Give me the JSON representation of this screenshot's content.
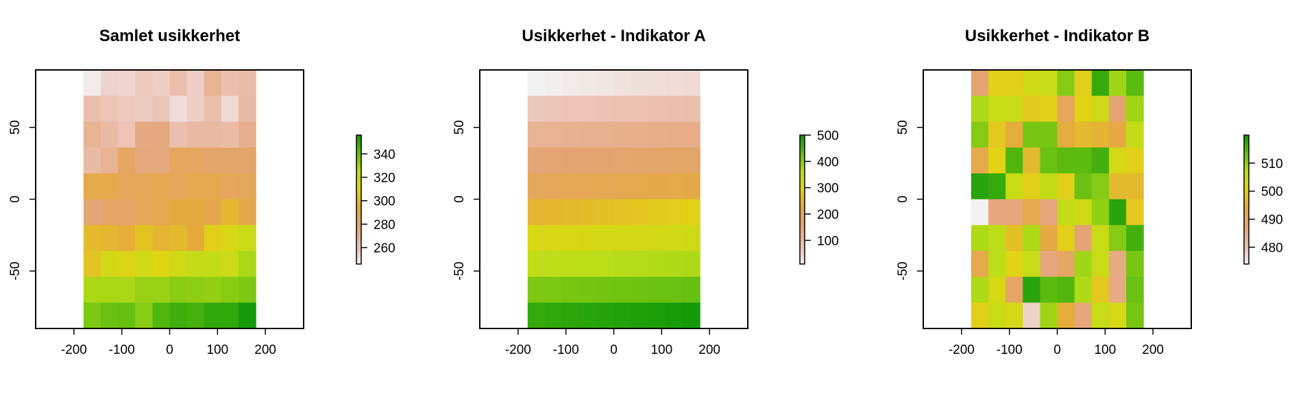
{
  "chart_data": [
    {
      "type": "heatmap",
      "title": "Samlet usikkerhet",
      "xlim": [
        -280,
        280
      ],
      "ylim": [
        -90,
        90
      ],
      "x_ticks": [
        -200,
        -100,
        0,
        100,
        200
      ],
      "y_ticks": [
        -50,
        0,
        50
      ],
      "x_tick_labels": [
        "-200",
        "-100",
        "0",
        "100",
        "200"
      ],
      "y_tick_labels": [
        "-50",
        "0",
        "50"
      ],
      "grid": false,
      "x_range": [
        -180,
        180
      ],
      "y_range": [
        -90,
        90
      ],
      "ncols": 10,
      "nrows": 10,
      "colorbar": {
        "min": 246,
        "max": 356,
        "ticks": [
          260,
          280,
          300,
          320,
          340
        ],
        "tick_labels": [
          "260",
          "280",
          "300",
          "320",
          "340"
        ]
      },
      "z": [
        [
          248,
          255,
          254,
          258,
          256,
          263,
          256,
          270,
          262,
          264
        ],
        [
          262,
          260,
          258,
          257,
          259,
          252,
          256,
          263,
          253,
          265
        ],
        [
          270,
          265,
          260,
          275,
          276,
          262,
          266,
          266,
          264,
          272
        ],
        [
          265,
          270,
          285,
          276,
          276,
          285,
          285,
          282,
          282,
          282
        ],
        [
          292,
          292,
          286,
          288,
          289,
          287,
          290,
          290,
          286,
          287
        ],
        [
          278,
          283,
          283,
          288,
          289,
          295,
          295,
          291,
          300,
          291
        ],
        [
          301,
          300,
          297,
          304,
          299,
          301,
          296,
          308,
          314,
          319
        ],
        [
          304,
          316,
          313,
          317,
          311,
          317,
          322,
          322,
          319,
          328
        ],
        [
          328,
          328,
          328,
          331,
          331,
          334,
          333,
          332,
          334,
          336
        ],
        [
          336,
          339,
          340,
          334,
          344,
          347,
          346,
          350,
          350,
          355
        ]
      ]
    },
    {
      "type": "heatmap",
      "title": "Usikkerhet - Indikator A",
      "xlim": [
        -280,
        280
      ],
      "ylim": [
        -90,
        90
      ],
      "x_ticks": [
        -200,
        -100,
        0,
        100,
        200
      ],
      "y_ticks": [
        -50,
        0,
        50
      ],
      "x_tick_labels": [
        "-200",
        "-100",
        "0",
        "100",
        "200"
      ],
      "y_tick_labels": [
        "-50",
        "0",
        "50"
      ],
      "grid": false,
      "x_range": [
        -180,
        180
      ],
      "y_range": [
        -90,
        90
      ],
      "ncols": 10,
      "nrows": 10,
      "colorbar": {
        "min": 10,
        "max": 500,
        "ticks": [
          100,
          200,
          300,
          400,
          500
        ],
        "tick_labels": [
          "100",
          "200",
          "300",
          "400",
          "500"
        ]
      },
      "z": [
        [
          10,
          15,
          20,
          22,
          25,
          30,
          33,
          35,
          38,
          40
        ],
        [
          65,
          68,
          70,
          72,
          74,
          76,
          78,
          80,
          82,
          84
        ],
        [
          115,
          117,
          119,
          121,
          123,
          125,
          127,
          129,
          131,
          133
        ],
        [
          155,
          157,
          159,
          161,
          163,
          165,
          167,
          169,
          171,
          173
        ],
        [
          190,
          193,
          196,
          199,
          202,
          205,
          208,
          211,
          214,
          217
        ],
        [
          245,
          250,
          255,
          260,
          265,
          270,
          275,
          280,
          285,
          290
        ],
        [
          310,
          312,
          314,
          316,
          318,
          320,
          322,
          324,
          326,
          328
        ],
        [
          355,
          357,
          359,
          361,
          363,
          365,
          367,
          369,
          371,
          373
        ],
        [
          410,
          412,
          414,
          416,
          418,
          420,
          422,
          424,
          426,
          428
        ],
        [
          470,
          473,
          476,
          479,
          482,
          485,
          488,
          491,
          494,
          497
        ]
      ]
    },
    {
      "type": "heatmap",
      "title": "Usikkerhet - Indikator B",
      "xlim": [
        -280,
        280
      ],
      "ylim": [
        -90,
        90
      ],
      "x_ticks": [
        -200,
        -100,
        0,
        100,
        200
      ],
      "y_ticks": [
        -50,
        0,
        50
      ],
      "x_tick_labels": [
        "-200",
        "-100",
        "0",
        "100",
        "200"
      ],
      "y_tick_labels": [
        "-50",
        "0",
        "50"
      ],
      "grid": false,
      "x_range": [
        -180,
        180
      ],
      "y_range": [
        -90,
        90
      ],
      "ncols": 10,
      "nrows": 10,
      "colorbar": {
        "min": 474,
        "max": 520,
        "ticks": [
          480,
          490,
          500,
          510
        ],
        "tick_labels": [
          "480",
          "490",
          "500",
          "510"
        ]
      },
      "z": [
        [
          488,
          500,
          500,
          504,
          505,
          511,
          500,
          517,
          509,
          514
        ],
        [
          508,
          505,
          505,
          499,
          500,
          491,
          501,
          504,
          488,
          509
        ],
        [
          511,
          499,
          495,
          512,
          512,
          495,
          497,
          496,
          494,
          506
        ],
        [
          493,
          501,
          515,
          497,
          513,
          514,
          514,
          516,
          503,
          500
        ],
        [
          518,
          517,
          505,
          500,
          506,
          500,
          513,
          511,
          497,
          497
        ],
        [
          474,
          487,
          487,
          493,
          487,
          506,
          504,
          510,
          518,
          499
        ],
        [
          508,
          507,
          498,
          508,
          494,
          500,
          488,
          505,
          511,
          516
        ],
        [
          493,
          507,
          501,
          505,
          487,
          490,
          509,
          505,
          486,
          512
        ],
        [
          508,
          503,
          490,
          518,
          514,
          515,
          508,
          499,
          486,
          513
        ],
        [
          500,
          505,
          503,
          478,
          509,
          495,
          487,
          505,
          503,
          512
        ]
      ]
    }
  ]
}
